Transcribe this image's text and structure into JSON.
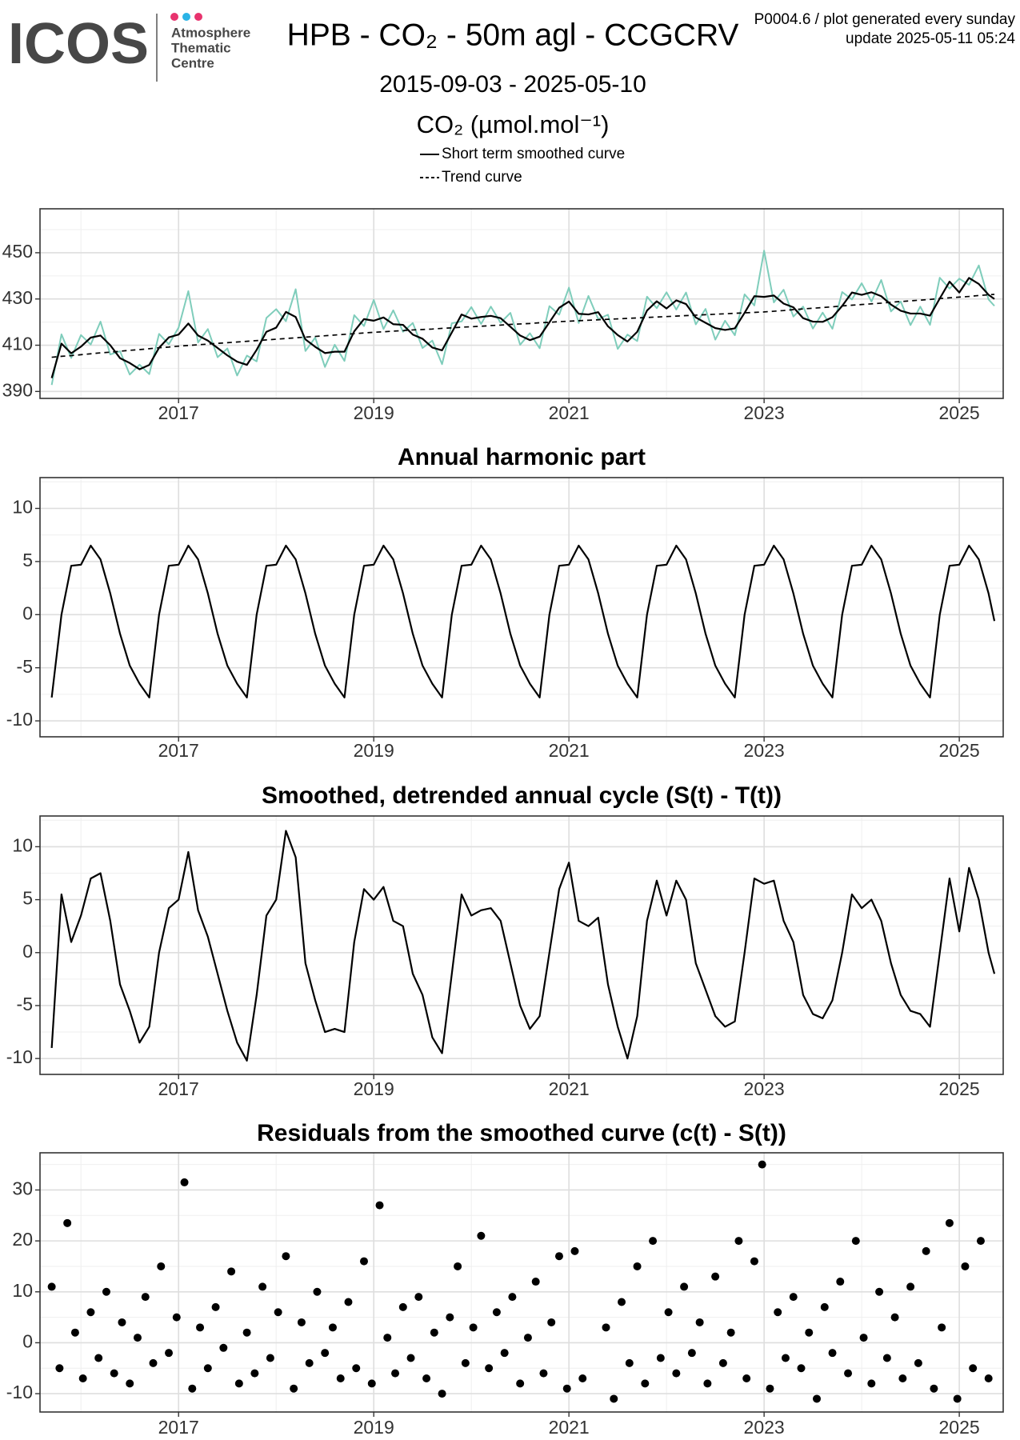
{
  "header": {
    "logo": "ICOS",
    "logo_lines": [
      "Atmosphere",
      "Thematic",
      "Centre"
    ],
    "info": "P0004.6 / plot generated every sunday",
    "update": "update  2025-05-11 05:24"
  },
  "chart_data": [
    {
      "type": "line",
      "title": "HPB - CO₂ - 50m agl - CCGCRV",
      "subtitle": "2015-09-03 - 2025-05-10",
      "ylabel": "CO₂ (µmol.mol⁻¹)",
      "legend": "top",
      "grid": true,
      "x": [
        2015.7,
        2015.8,
        2015.9,
        2016,
        2016.1,
        2016.2,
        2016.3,
        2016.4,
        2016.5,
        2016.6,
        2016.7,
        2016.8,
        2016.9,
        2017,
        2017.1,
        2017.2,
        2017.3,
        2017.4,
        2017.5,
        2017.6,
        2017.7,
        2017.8,
        2017.9,
        2018,
        2018.1,
        2018.2,
        2018.3,
        2018.4,
        2018.5,
        2018.6,
        2018.7,
        2018.8,
        2018.9,
        2019,
        2019.1,
        2019.2,
        2019.3,
        2019.4,
        2019.5,
        2019.6,
        2019.7,
        2019.8,
        2019.9,
        2020,
        2020.1,
        2020.2,
        2020.3,
        2020.4,
        2020.5,
        2020.6,
        2020.7,
        2020.8,
        2020.9,
        2021,
        2021.1,
        2021.2,
        2021.3,
        2021.4,
        2021.5,
        2021.6,
        2021.7,
        2021.8,
        2021.9,
        2022,
        2022.1,
        2022.2,
        2022.3,
        2022.4,
        2022.5,
        2022.6,
        2022.7,
        2022.8,
        2022.9,
        2023,
        2023.1,
        2023.2,
        2023.3,
        2023.4,
        2023.5,
        2023.6,
        2023.7,
        2023.8,
        2023.9,
        2024,
        2024.1,
        2024.2,
        2024.3,
        2024.4,
        2024.5,
        2024.6,
        2024.7,
        2024.8,
        2024.9,
        2025,
        2025.1,
        2025.2,
        2025.3,
        2025.36
      ],
      "xlim": [
        2015.58,
        2025.45
      ],
      "xticks": [
        2017,
        2019,
        2021,
        2023,
        2025
      ],
      "ylim": [
        387,
        469
      ],
      "yticks": [
        390,
        410,
        430,
        450
      ],
      "series": [
        {
          "color": "#7fcdbb",
          "values": [
            392.8,
            414.7,
            404.5,
            414.4,
            410.3,
            420.2,
            406.0,
            407.4,
            397.3,
            401.6,
            397.5,
            414.9,
            410.4,
            417.6,
            433.4,
            411.2,
            417.0,
            404.8,
            408.6,
            396.9,
            405.5,
            403.0,
            421.8,
            425.6,
            420.4,
            434.2,
            407.5,
            413.3,
            400.6,
            410.2,
            403.2,
            423.0,
            418.3,
            429.6,
            417.0,
            425.1,
            415.8,
            419.6,
            408.8,
            412.0,
            401.8,
            419.5,
            420.3,
            426.5,
            419.2,
            426.7,
            419.7,
            424.0,
            410.2,
            415.2,
            408.7,
            426.9,
            423.2,
            434.9,
            419.6,
            431.3,
            421.3,
            423.2,
            408.4,
            414.6,
            411.8,
            431.0,
            426.0,
            432.9,
            425.4,
            432.8,
            419.0,
            425.7,
            412.4,
            420.6,
            414.3,
            432.0,
            427.2,
            450.9,
            428.5,
            434.0,
            422.4,
            426.7,
            417.2,
            424.1,
            417.1,
            433.0,
            429.8,
            436.8,
            428.9,
            438.2,
            424.6,
            428.9,
            418.7,
            426.7,
            418.8,
            439.2,
            434.5,
            438.8,
            436.1,
            444.5,
            429.8,
            427.0
          ]
        },
        {
          "name": "Short term smoothed curve",
          "color": "#000000",
          "values": [
            395.8,
            410.7,
            406.5,
            409.4,
            413.3,
            414.2,
            410.0,
            404.4,
            402.3,
            399.6,
            401.5,
            408.9,
            413.4,
            414.6,
            419.4,
            414.2,
            412.0,
            408.8,
            405.6,
            402.9,
            401.5,
            408.0,
            415.8,
            417.6,
            424.4,
            422.2,
            412.5,
            409.3,
            406.6,
            407.2,
            407.2,
            416.0,
            421.3,
            420.6,
            422.0,
            419.1,
            418.8,
            414.6,
            412.8,
            409.0,
            407.8,
            415.5,
            423.3,
            421.5,
            422.2,
            422.7,
            421.7,
            418.0,
            414.2,
            412.2,
            413.7,
            419.9,
            426.2,
            428.9,
            423.6,
            423.3,
            424.3,
            418.2,
            414.4,
            411.6,
            415.8,
            425.0,
            429.0,
            425.9,
            429.4,
            427.8,
            422.0,
            419.7,
            417.4,
            416.6,
            417.3,
            424.0,
            431.2,
            430.9,
            431.5,
            428.0,
            426.4,
            421.7,
            420.2,
            420.1,
            422.1,
            427.0,
            432.8,
            431.8,
            432.9,
            431.2,
            427.6,
            424.9,
            423.7,
            423.7,
            422.8,
            430.2,
            437.5,
            432.8,
            439.1,
            436.5,
            431.8,
            430.0
          ]
        },
        {
          "name": "Trend curve",
          "color": "#000000",
          "dashed": true,
          "values": [
            404.8,
            405.2,
            405.5,
            405.9,
            406.3,
            406.7,
            407.0,
            407.4,
            407.8,
            408.1,
            408.5,
            408.9,
            409.2,
            409.6,
            409.9,
            410.2,
            410.5,
            410.8,
            411.1,
            411.4,
            411.7,
            412.0,
            412.3,
            412.6,
            412.9,
            413.2,
            413.5,
            413.8,
            414.1,
            414.4,
            414.7,
            415.0,
            415.3,
            415.6,
            415.8,
            416.1,
            416.3,
            416.6,
            416.8,
            417.0,
            417.3,
            417.5,
            417.8,
            418.0,
            418.2,
            418.5,
            418.7,
            419.0,
            419.2,
            419.4,
            419.7,
            419.9,
            420.2,
            420.4,
            420.6,
            420.8,
            421.0,
            421.2,
            421.4,
            421.6,
            421.8,
            422.0,
            422.2,
            422.4,
            422.6,
            422.8,
            423.0,
            423.2,
            423.4,
            423.6,
            423.8,
            424.0,
            424.2,
            424.4,
            424.7,
            425.0,
            425.4,
            425.7,
            426.0,
            426.3,
            426.6,
            427.0,
            427.3,
            427.6,
            427.9,
            428.2,
            428.6,
            428.9,
            429.2,
            429.5,
            429.8,
            430.2,
            430.5,
            430.8,
            431.1,
            431.5,
            431.8,
            432.0
          ]
        }
      ]
    },
    {
      "type": "line",
      "title": "Annual harmonic part",
      "grid": true,
      "x": [
        2015.7,
        2015.8,
        2015.9,
        2016,
        2016.1,
        2016.2,
        2016.3,
        2016.4,
        2016.5,
        2016.6,
        2016.7,
        2016.8,
        2016.9,
        2017,
        2017.1,
        2017.2,
        2017.3,
        2017.4,
        2017.5,
        2017.6,
        2017.7,
        2017.8,
        2017.9,
        2018,
        2018.1,
        2018.2,
        2018.3,
        2018.4,
        2018.5,
        2018.6,
        2018.7,
        2018.8,
        2018.9,
        2019,
        2019.1,
        2019.2,
        2019.3,
        2019.4,
        2019.5,
        2019.6,
        2019.7,
        2019.8,
        2019.9,
        2020,
        2020.1,
        2020.2,
        2020.3,
        2020.4,
        2020.5,
        2020.6,
        2020.7,
        2020.8,
        2020.9,
        2021,
        2021.1,
        2021.2,
        2021.3,
        2021.4,
        2021.5,
        2021.6,
        2021.7,
        2021.8,
        2021.9,
        2022,
        2022.1,
        2022.2,
        2022.3,
        2022.4,
        2022.5,
        2022.6,
        2022.7,
        2022.8,
        2022.9,
        2023,
        2023.1,
        2023.2,
        2023.3,
        2023.4,
        2023.5,
        2023.6,
        2023.7,
        2023.8,
        2023.9,
        2024,
        2024.1,
        2024.2,
        2024.3,
        2024.4,
        2024.5,
        2024.6,
        2024.7,
        2024.8,
        2024.9,
        2025,
        2025.1,
        2025.2,
        2025.3,
        2025.36
      ],
      "xlim": [
        2015.58,
        2025.45
      ],
      "xticks": [
        2017,
        2019,
        2021,
        2023,
        2025
      ],
      "ylim": [
        -11.5,
        12.9
      ],
      "yticks": [
        -10,
        -5,
        0,
        5,
        10
      ],
      "series": [
        {
          "color": "#000000",
          "values": [
            -7.8,
            0,
            4.6,
            4.7,
            6.5,
            5.2,
            2.0,
            -1.8,
            -4.8,
            -6.5,
            -7.8,
            0,
            4.6,
            4.7,
            6.5,
            5.2,
            2.0,
            -1.8,
            -4.8,
            -6.5,
            -7.8,
            0,
            4.6,
            4.7,
            6.5,
            5.2,
            2.0,
            -1.8,
            -4.8,
            -6.5,
            -7.8,
            0,
            4.6,
            4.7,
            6.5,
            5.2,
            2.0,
            -1.8,
            -4.8,
            -6.5,
            -7.8,
            0,
            4.6,
            4.7,
            6.5,
            5.2,
            2.0,
            -1.8,
            -4.8,
            -6.5,
            -7.8,
            0,
            4.6,
            4.7,
            6.5,
            5.2,
            2.0,
            -1.8,
            -4.8,
            -6.5,
            -7.8,
            0,
            4.6,
            4.7,
            6.5,
            5.2,
            2.0,
            -1.8,
            -4.8,
            -6.5,
            -7.8,
            0,
            4.6,
            4.7,
            6.5,
            5.2,
            2.0,
            -1.8,
            -4.8,
            -6.5,
            -7.8,
            0,
            4.6,
            4.7,
            6.5,
            5.2,
            2.0,
            -1.8,
            -4.8,
            -6.5,
            -7.8,
            0,
            4.6,
            4.7,
            6.5,
            5.2,
            2.0,
            -0.6
          ]
        }
      ]
    },
    {
      "type": "line",
      "title": "Smoothed, detrended annual cycle (S(t) - T(t))",
      "grid": true,
      "x": [
        2015.7,
        2015.8,
        2015.9,
        2016,
        2016.1,
        2016.2,
        2016.3,
        2016.4,
        2016.5,
        2016.6,
        2016.7,
        2016.8,
        2016.9,
        2017,
        2017.1,
        2017.2,
        2017.3,
        2017.4,
        2017.5,
        2017.6,
        2017.7,
        2017.8,
        2017.9,
        2018,
        2018.1,
        2018.2,
        2018.3,
        2018.4,
        2018.5,
        2018.6,
        2018.7,
        2018.8,
        2018.9,
        2019,
        2019.1,
        2019.2,
        2019.3,
        2019.4,
        2019.5,
        2019.6,
        2019.7,
        2019.8,
        2019.9,
        2020,
        2020.1,
        2020.2,
        2020.3,
        2020.4,
        2020.5,
        2020.6,
        2020.7,
        2020.8,
        2020.9,
        2021,
        2021.1,
        2021.2,
        2021.3,
        2021.4,
        2021.5,
        2021.6,
        2021.7,
        2021.8,
        2021.9,
        2022,
        2022.1,
        2022.2,
        2022.3,
        2022.4,
        2022.5,
        2022.6,
        2022.7,
        2022.8,
        2022.9,
        2023,
        2023.1,
        2023.2,
        2023.3,
        2023.4,
        2023.5,
        2023.6,
        2023.7,
        2023.8,
        2023.9,
        2024,
        2024.1,
        2024.2,
        2024.3,
        2024.4,
        2024.5,
        2024.6,
        2024.7,
        2024.8,
        2024.9,
        2025,
        2025.1,
        2025.2,
        2025.3,
        2025.36
      ],
      "xlim": [
        2015.58,
        2025.45
      ],
      "xticks": [
        2017,
        2019,
        2021,
        2023,
        2025
      ],
      "ylim": [
        -11.5,
        12.9
      ],
      "yticks": [
        -10,
        -5,
        0,
        5,
        10
      ],
      "series": [
        {
          "color": "#000000",
          "values": [
            -9,
            5.5,
            1,
            3.5,
            7,
            7.5,
            3,
            -3,
            -5.5,
            -8.5,
            -7,
            0,
            4.2,
            5,
            9.5,
            4,
            1.5,
            -2,
            -5.5,
            -8.5,
            -10.2,
            -4,
            3.5,
            5,
            11.5,
            9,
            -1,
            -4.5,
            -7.5,
            -7.2,
            -7.5,
            1,
            6,
            5,
            6.2,
            3,
            2.5,
            -2,
            -4,
            -8,
            -9.5,
            -2,
            5.5,
            3.5,
            4,
            4.2,
            3,
            -1,
            -5,
            -7.2,
            -6,
            0,
            6,
            8.5,
            3,
            2.5,
            3.3,
            -3,
            -7,
            -10,
            -6,
            3,
            6.8,
            3.5,
            6.8,
            5,
            -1,
            -3.5,
            -6,
            -7,
            -6.5,
            0,
            7,
            6.5,
            6.8,
            3,
            1,
            -4,
            -5.8,
            -6.2,
            -4.5,
            0,
            5.5,
            4.2,
            5,
            3,
            -1,
            -4,
            -5.5,
            -5.8,
            -7,
            0,
            7,
            2,
            8,
            5,
            0,
            -2
          ]
        }
      ]
    },
    {
      "type": "scatter",
      "title": "Residuals from the smoothed curve (c(t) - S(t))",
      "grid": true,
      "color": "#000000",
      "x": [
        2015.7,
        2015.78,
        2015.86,
        2015.94,
        2016.02,
        2016.1,
        2016.18,
        2016.26,
        2016.34,
        2016.42,
        2016.5,
        2016.58,
        2016.66,
        2016.74,
        2016.82,
        2016.9,
        2016.98,
        2017.06,
        2017.14,
        2017.22,
        2017.3,
        2017.38,
        2017.46,
        2017.54,
        2017.62,
        2017.7,
        2017.78,
        2017.86,
        2017.94,
        2018.02,
        2018.1,
        2018.18,
        2018.26,
        2018.34,
        2018.42,
        2018.5,
        2018.58,
        2018.66,
        2018.74,
        2018.82,
        2018.9,
        2018.98,
        2019.06,
        2019.14,
        2019.22,
        2019.3,
        2019.38,
        2019.46,
        2019.54,
        2019.62,
        2019.7,
        2019.78,
        2019.86,
        2019.94,
        2020.02,
        2020.1,
        2020.18,
        2020.26,
        2020.34,
        2020.42,
        2020.5,
        2020.58,
        2020.66,
        2020.74,
        2020.82,
        2020.9,
        2020.98,
        2021.06,
        2021.14,
        2021.38,
        2021.46,
        2021.54,
        2021.62,
        2021.7,
        2021.78,
        2021.86,
        2021.94,
        2022.02,
        2022.1,
        2022.18,
        2022.26,
        2022.34,
        2022.42,
        2022.5,
        2022.58,
        2022.66,
        2022.74,
        2022.82,
        2022.9,
        2022.98,
        2023.06,
        2023.14,
        2023.22,
        2023.3,
        2023.38,
        2023.46,
        2023.54,
        2023.62,
        2023.7,
        2023.78,
        2023.86,
        2023.94,
        2024.02,
        2024.1,
        2024.18,
        2024.26,
        2024.34,
        2024.42,
        2024.5,
        2024.58,
        2024.66,
        2024.74,
        2024.82,
        2024.9,
        2024.98,
        2025.06,
        2025.14,
        2025.22,
        2025.3
      ],
      "values": [
        11,
        -5,
        23.5,
        2,
        -7,
        6,
        -3,
        10,
        -6,
        4,
        -8,
        1,
        9,
        -4,
        15,
        -2,
        5,
        31.5,
        -9,
        3,
        -5,
        7,
        -1,
        14,
        -8,
        2,
        -6,
        11,
        -3,
        6,
        17,
        -9,
        4,
        -4,
        10,
        -2,
        3,
        -7,
        8,
        -5,
        16,
        -8,
        27,
        1,
        -6,
        7,
        -3,
        9,
        -7,
        2,
        -10,
        5,
        15,
        -4,
        3,
        21,
        -5,
        6,
        -2,
        9,
        -8,
        1,
        12,
        -6,
        4,
        17,
        -9,
        18,
        -7,
        3,
        -11,
        8,
        -4,
        15,
        -8,
        20,
        -3,
        6,
        -6,
        11,
        -2,
        4,
        -8,
        13,
        -4,
        2,
        20,
        -7,
        16,
        35,
        -9,
        6,
        -3,
        9,
        -5,
        2,
        -11,
        7,
        -2,
        12,
        -6,
        20,
        1,
        -8,
        10,
        -3,
        5,
        -7,
        11,
        -4,
        18,
        -9,
        3,
        23.5,
        -11,
        15,
        -5,
        20,
        -7
      ],
      "xlim": [
        2015.58,
        2025.45
      ],
      "xticks": [
        2017,
        2019,
        2021,
        2023,
        2025
      ],
      "ylim": [
        -13.6,
        37.3
      ],
      "yticks": [
        -10,
        0,
        10,
        20,
        30
      ]
    }
  ]
}
